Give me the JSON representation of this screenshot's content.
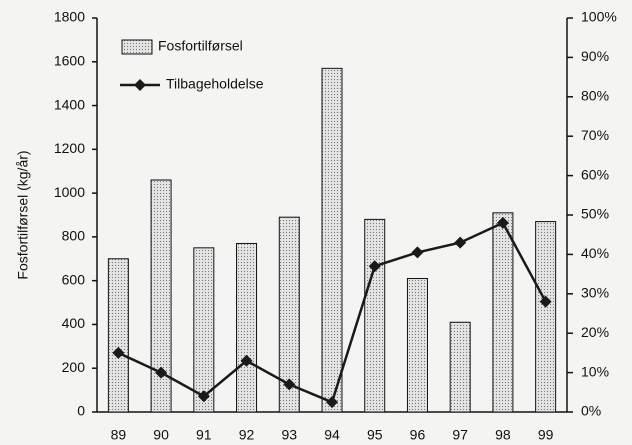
{
  "chart_data": {
    "type": "bar",
    "y_label": "Fosfortilførsel  (kg/år)",
    "categories": [
      "89",
      "90",
      "91",
      "92",
      "93",
      "94",
      "95",
      "96",
      "97",
      "98",
      "99"
    ],
    "series": [
      {
        "name": "Fosfortilførsel",
        "type": "bar",
        "color": "#e4e4e4",
        "values": [
          700,
          1060,
          750,
          770,
          890,
          1570,
          880,
          610,
          410,
          910,
          870
        ]
      },
      {
        "name": "Tilbageholdelse",
        "type": "line",
        "axis": "y2",
        "color": "#1a1a1a",
        "values": [
          15,
          10,
          4,
          13,
          7,
          2.5,
          37,
          40.5,
          43,
          48,
          28
        ]
      }
    ],
    "ylim": [
      0,
      1800
    ],
    "yticks": [
      0,
      200,
      400,
      600,
      800,
      1000,
      1200,
      1400,
      1600,
      1800
    ],
    "y2lim": [
      0,
      100
    ],
    "y2ticks": [
      {
        "value": 0,
        "label": "0%"
      },
      {
        "value": 10,
        "label": "10%"
      },
      {
        "value": 20,
        "label": "20%"
      },
      {
        "value": 30,
        "label": "30%"
      },
      {
        "value": 40,
        "label": "40%"
      },
      {
        "value": 50,
        "label": "50%"
      },
      {
        "value": 60,
        "label": "60%"
      },
      {
        "value": 70,
        "label": "70%"
      },
      {
        "value": 80,
        "label": "80%"
      },
      {
        "value": 90,
        "label": "90%"
      },
      {
        "value": 100,
        "label": "100%"
      }
    ],
    "legend": "top-left"
  }
}
